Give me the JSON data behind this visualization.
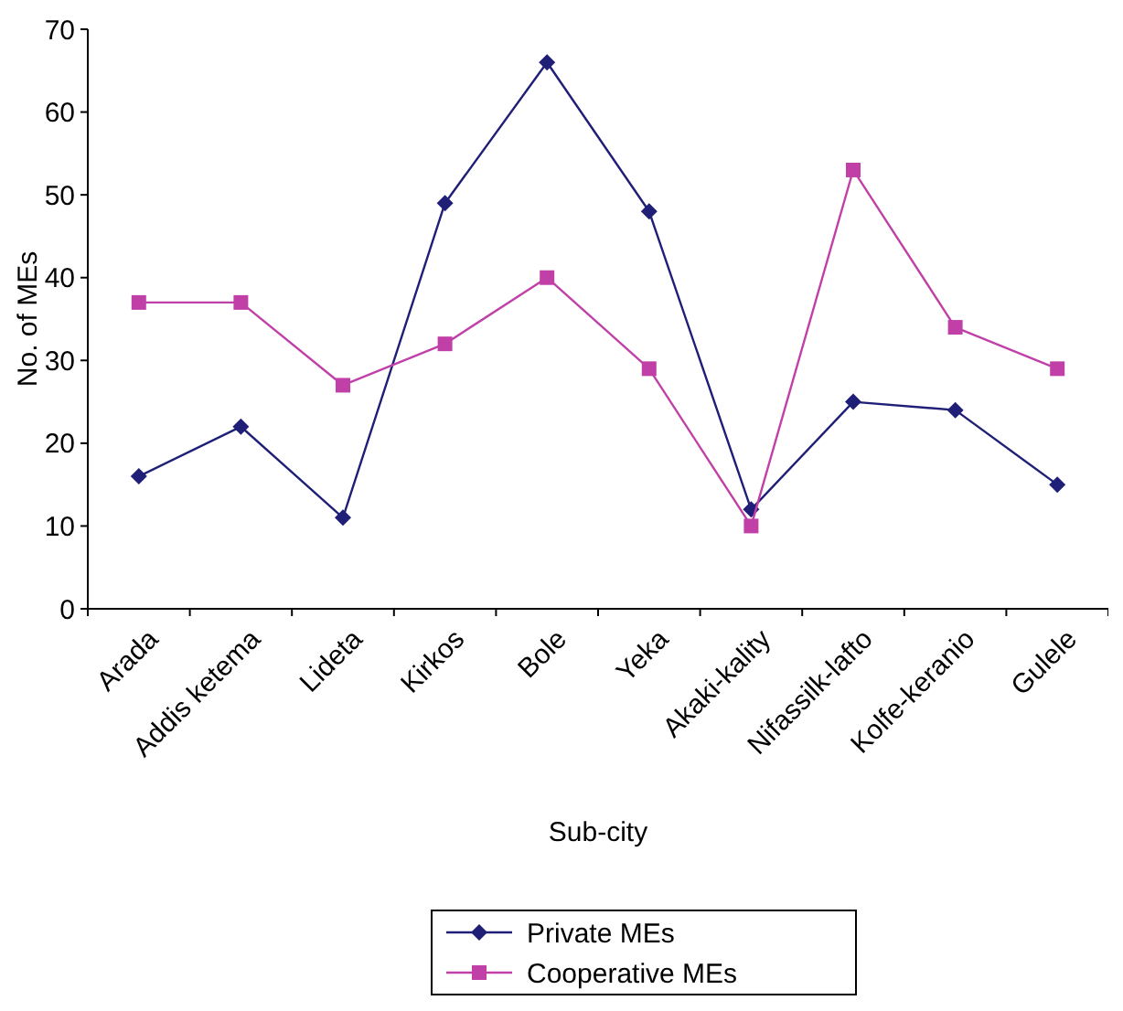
{
  "chart_data": {
    "type": "line",
    "xlabel": "Sub-city",
    "ylabel": "No. of MEs",
    "categories": [
      "Arada",
      "Addis ketema",
      "Lideta",
      "Kirkos",
      "Bole",
      "Yeka",
      "Akaki-kality",
      "Nifassilk-lafto",
      "Kolfe-keranio",
      "Gulele"
    ],
    "series": [
      {
        "name": "Private MEs",
        "color": "#1f1f78",
        "marker": "diamond",
        "values": [
          16,
          22,
          11,
          49,
          66,
          48,
          12,
          25,
          24,
          15
        ]
      },
      {
        "name": "Cooperative MEs",
        "color": "#c040a8",
        "marker": "square",
        "values": [
          37,
          37,
          27,
          32,
          40,
          29,
          10,
          53,
          34,
          29
        ]
      }
    ],
    "ylim": [
      0,
      70
    ],
    "yticks": [
      0,
      10,
      20,
      30,
      40,
      50,
      60,
      70
    ],
    "grid": false,
    "legend": "bottom"
  }
}
